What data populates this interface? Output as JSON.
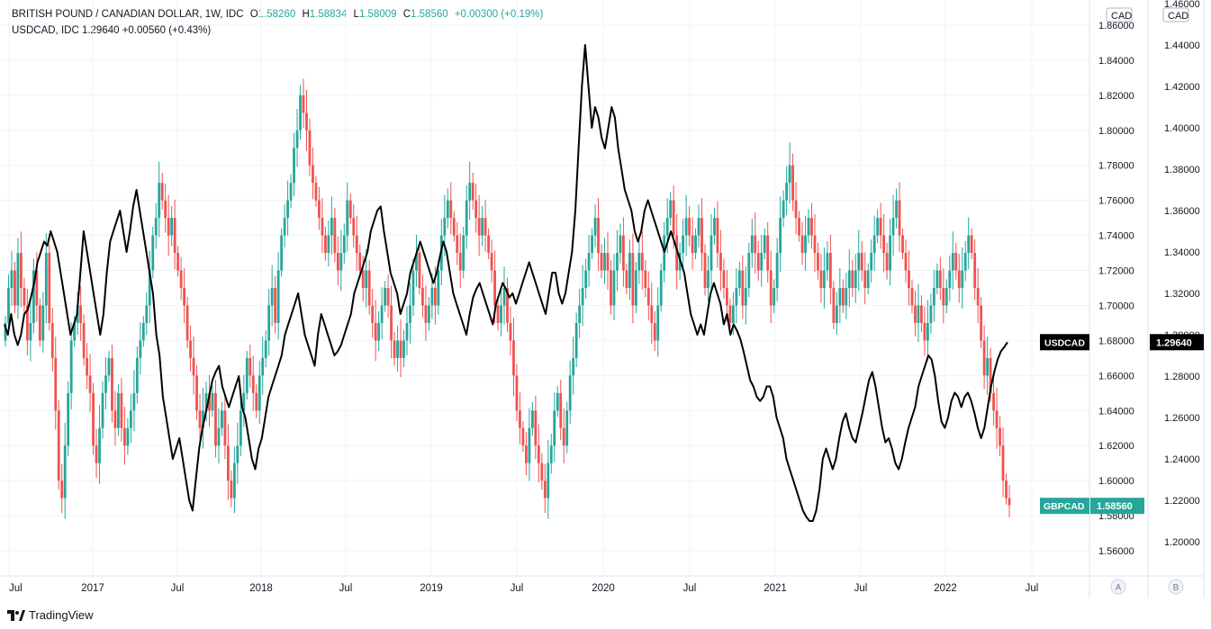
{
  "header": {
    "main_symbol": "BRITISH POUND / CANADIAN DOLLAR, 1W, IDC",
    "open_label": "O",
    "open": "1.58260",
    "high_label": "H",
    "high": "1.58834",
    "low_label": "L",
    "low": "1.58009",
    "close_label": "C",
    "close": "1.58560",
    "change": "+0.00300 (+0.19%)",
    "compare_line": "USDCAD, IDC  1.29640  +0.00560 (+0.43%)"
  },
  "branding": {
    "watermark": "TradingView",
    "icon": "tradingview-logo-icon"
  },
  "colors": {
    "up": "#26a69a",
    "down": "#ef5350",
    "compare_line": "#000000",
    "grid": "#f0f3fa",
    "axis_text": "#131722"
  },
  "chart_data": {
    "type": "candlestick",
    "x_tick_labels": [
      "Jul",
      "2017",
      "Jul",
      "2018",
      "Jul",
      "2019",
      "Jul",
      "2020",
      "Jul",
      "2021",
      "Jul",
      "2022",
      "Jul"
    ],
    "left_axis": {
      "currency": "CAD",
      "tick_labels": [
        "1.86000",
        "1.84000",
        "1.82000",
        "1.80000",
        "1.78000",
        "1.76000",
        "1.74000",
        "1.72000",
        "1.70000",
        "1.68000",
        "1.66000",
        "1.64000",
        "1.62000",
        "1.60000",
        "1.58000",
        "1.56000"
      ],
      "range": [
        1.55,
        1.865
      ]
    },
    "right_axis": {
      "currency": "CAD",
      "tick_labels": [
        "1.46000",
        "1.44000",
        "1.42000",
        "1.40000",
        "1.38000",
        "1.36000",
        "1.34000",
        "1.32000",
        "1.30000",
        "1.28000",
        "1.26000",
        "1.24000",
        "1.22000",
        "1.20000"
      ],
      "range": [
        1.19,
        1.46
      ]
    },
    "series": [
      {
        "name": "GBPCAD",
        "kind": "candles",
        "last_value": "1.58560",
        "closes": [
          1.69,
          1.71,
          1.72,
          1.7,
          1.73,
          1.71,
          1.7,
          1.68,
          1.69,
          1.72,
          1.7,
          1.68,
          1.7,
          1.73,
          1.69,
          1.67,
          1.64,
          1.6,
          1.59,
          1.62,
          1.65,
          1.68,
          1.69,
          1.7,
          1.69,
          1.67,
          1.66,
          1.65,
          1.62,
          1.61,
          1.63,
          1.65,
          1.66,
          1.67,
          1.64,
          1.63,
          1.65,
          1.63,
          1.62,
          1.63,
          1.64,
          1.65,
          1.67,
          1.68,
          1.69,
          1.7,
          1.72,
          1.74,
          1.75,
          1.77,
          1.76,
          1.75,
          1.74,
          1.75,
          1.73,
          1.72,
          1.71,
          1.7,
          1.68,
          1.67,
          1.66,
          1.64,
          1.63,
          1.64,
          1.65,
          1.64,
          1.65,
          1.62,
          1.63,
          1.64,
          1.62,
          1.6,
          1.59,
          1.61,
          1.62,
          1.64,
          1.65,
          1.67,
          1.66,
          1.65,
          1.64,
          1.66,
          1.67,
          1.68,
          1.7,
          1.71,
          1.69,
          1.72,
          1.74,
          1.75,
          1.76,
          1.77,
          1.79,
          1.8,
          1.82,
          1.81,
          1.8,
          1.78,
          1.77,
          1.76,
          1.75,
          1.74,
          1.73,
          1.74,
          1.75,
          1.73,
          1.72,
          1.73,
          1.74,
          1.76,
          1.75,
          1.74,
          1.73,
          1.72,
          1.71,
          1.72,
          1.7,
          1.69,
          1.68,
          1.69,
          1.7,
          1.71,
          1.7,
          1.68,
          1.67,
          1.68,
          1.67,
          1.68,
          1.69,
          1.7,
          1.72,
          1.73,
          1.71,
          1.7,
          1.69,
          1.7,
          1.71,
          1.7,
          1.72,
          1.74,
          1.75,
          1.76,
          1.75,
          1.74,
          1.73,
          1.72,
          1.74,
          1.76,
          1.77,
          1.76,
          1.75,
          1.74,
          1.75,
          1.74,
          1.73,
          1.72,
          1.7,
          1.69,
          1.7,
          1.71,
          1.69,
          1.68,
          1.66,
          1.64,
          1.63,
          1.62,
          1.61,
          1.63,
          1.64,
          1.62,
          1.61,
          1.6,
          1.59,
          1.61,
          1.62,
          1.64,
          1.65,
          1.63,
          1.62,
          1.64,
          1.66,
          1.67,
          1.69,
          1.7,
          1.71,
          1.72,
          1.73,
          1.74,
          1.75,
          1.73,
          1.72,
          1.73,
          1.72,
          1.7,
          1.72,
          1.73,
          1.74,
          1.72,
          1.71,
          1.73,
          1.7,
          1.72,
          1.73,
          1.72,
          1.71,
          1.7,
          1.69,
          1.68,
          1.7,
          1.72,
          1.74,
          1.75,
          1.76,
          1.74,
          1.72,
          1.73,
          1.74,
          1.75,
          1.74,
          1.73,
          1.74,
          1.75,
          1.73,
          1.71,
          1.72,
          1.74,
          1.75,
          1.73,
          1.72,
          1.71,
          1.7,
          1.69,
          1.7,
          1.71,
          1.72,
          1.7,
          1.71,
          1.73,
          1.74,
          1.73,
          1.72,
          1.73,
          1.74,
          1.72,
          1.7,
          1.71,
          1.73,
          1.75,
          1.76,
          1.77,
          1.78,
          1.76,
          1.75,
          1.74,
          1.73,
          1.74,
          1.75,
          1.74,
          1.73,
          1.72,
          1.71,
          1.72,
          1.73,
          1.71,
          1.69,
          1.7,
          1.71,
          1.7,
          1.71,
          1.72,
          1.71,
          1.72,
          1.73,
          1.72,
          1.71,
          1.72,
          1.73,
          1.74,
          1.75,
          1.74,
          1.73,
          1.72,
          1.74,
          1.75,
          1.76,
          1.74,
          1.73,
          1.72,
          1.71,
          1.7,
          1.69,
          1.7,
          1.69,
          1.68,
          1.69,
          1.7,
          1.71,
          1.72,
          1.71,
          1.7,
          1.71,
          1.72,
          1.73,
          1.72,
          1.71,
          1.72,
          1.73,
          1.74,
          1.73,
          1.71,
          1.7,
          1.68,
          1.66,
          1.67,
          1.65,
          1.64,
          1.63,
          1.62,
          1.6,
          1.59,
          1.586
        ]
      },
      {
        "name": "USDCAD",
        "kind": "line",
        "last_value": "1.29640",
        "values": [
          1.305,
          1.3,
          1.31,
          1.3,
          1.295,
          1.3,
          1.31,
          1.312,
          1.318,
          1.325,
          1.335,
          1.34,
          1.345,
          1.343,
          1.35,
          1.345,
          1.34,
          1.33,
          1.32,
          1.31,
          1.3,
          1.305,
          1.31,
          1.33,
          1.35,
          1.34,
          1.33,
          1.32,
          1.31,
          1.3,
          1.31,
          1.33,
          1.345,
          1.35,
          1.355,
          1.36,
          1.35,
          1.34,
          1.35,
          1.362,
          1.37,
          1.36,
          1.35,
          1.34,
          1.33,
          1.32,
          1.3,
          1.29,
          1.27,
          1.26,
          1.25,
          1.24,
          1.245,
          1.25,
          1.24,
          1.23,
          1.22,
          1.215,
          1.23,
          1.245,
          1.255,
          1.262,
          1.27,
          1.278,
          1.282,
          1.285,
          1.275,
          1.27,
          1.265,
          1.27,
          1.275,
          1.28,
          1.265,
          1.26,
          1.25,
          1.24,
          1.235,
          1.245,
          1.25,
          1.26,
          1.27,
          1.275,
          1.28,
          1.285,
          1.29,
          1.3,
          1.305,
          1.31,
          1.315,
          1.32,
          1.31,
          1.3,
          1.295,
          1.29,
          1.285,
          1.3,
          1.31,
          1.305,
          1.3,
          1.295,
          1.29,
          1.292,
          1.295,
          1.3,
          1.305,
          1.31,
          1.32,
          1.325,
          1.33,
          1.335,
          1.34,
          1.35,
          1.355,
          1.36,
          1.362,
          1.35,
          1.34,
          1.33,
          1.325,
          1.32,
          1.31,
          1.315,
          1.32,
          1.33,
          1.335,
          1.34,
          1.345,
          1.34,
          1.335,
          1.33,
          1.325,
          1.33,
          1.338,
          1.345,
          1.34,
          1.33,
          1.32,
          1.315,
          1.31,
          1.305,
          1.3,
          1.31,
          1.318,
          1.322,
          1.325,
          1.32,
          1.315,
          1.31,
          1.305,
          1.315,
          1.32,
          1.325,
          1.322,
          1.318,
          1.32,
          1.315,
          1.32,
          1.325,
          1.33,
          1.335,
          1.33,
          1.325,
          1.32,
          1.315,
          1.31,
          1.32,
          1.33,
          1.33,
          1.32,
          1.315,
          1.32,
          1.33,
          1.34,
          1.36,
          1.39,
          1.42,
          1.44,
          1.42,
          1.4,
          1.41,
          1.405,
          1.395,
          1.39,
          1.4,
          1.41,
          1.405,
          1.39,
          1.38,
          1.37,
          1.365,
          1.36,
          1.35,
          1.345,
          1.35,
          1.36,
          1.365,
          1.36,
          1.355,
          1.35,
          1.345,
          1.34,
          1.345,
          1.35,
          1.345,
          1.34,
          1.335,
          1.33,
          1.32,
          1.31,
          1.305,
          1.3,
          1.305,
          1.3,
          1.31,
          1.32,
          1.325,
          1.32,
          1.315,
          1.305,
          1.31,
          1.3,
          1.305,
          1.302,
          1.298,
          1.292,
          1.285,
          1.278,
          1.275,
          1.27,
          1.268,
          1.27,
          1.275,
          1.275,
          1.27,
          1.26,
          1.255,
          1.25,
          1.24,
          1.235,
          1.23,
          1.225,
          1.22,
          1.215,
          1.212,
          1.21,
          1.21,
          1.215,
          1.225,
          1.24,
          1.245,
          1.24,
          1.235,
          1.24,
          1.25,
          1.258,
          1.262,
          1.255,
          1.25,
          1.248,
          1.255,
          1.262,
          1.27,
          1.278,
          1.282,
          1.275,
          1.265,
          1.255,
          1.248,
          1.25,
          1.245,
          1.238,
          1.235,
          1.24,
          1.248,
          1.255,
          1.26,
          1.265,
          1.275,
          1.28,
          1.285,
          1.29,
          1.288,
          1.28,
          1.268,
          1.258,
          1.255,
          1.26,
          1.268,
          1.272,
          1.27,
          1.265,
          1.27,
          1.272,
          1.268,
          1.262,
          1.255,
          1.25,
          1.255,
          1.265,
          1.275,
          1.282,
          1.288,
          1.292,
          1.294,
          1.2964
        ]
      }
    ],
    "grid": true,
    "legend_placement": "top-left"
  }
}
